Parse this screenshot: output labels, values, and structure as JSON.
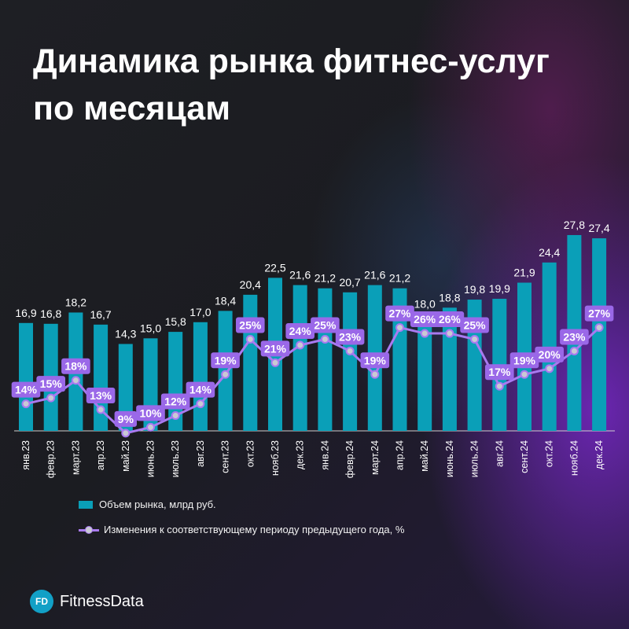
{
  "title": "Динамика рынка фитнес-услуг по месяцам",
  "legend": {
    "bar_label": "Объем рынка, млрд руб.",
    "line_label": "Изменения к соответствующему периоду предыдущего года, %"
  },
  "brand": {
    "logo_text": "FD",
    "name": "FitnessData"
  },
  "colors": {
    "bar": "#0a9fb8",
    "line": "#a97af0",
    "line_label_bg": "#9a68e8",
    "marker_fill": "#c9c9d4",
    "text": "#ffffff",
    "axis": "#cfcfcf"
  },
  "chart_data": {
    "type": "bar",
    "categories": [
      "янв.23",
      "февр.23",
      "март.23",
      "апр.23",
      "май.23",
      "июнь.23",
      "июль.23",
      "авг.23",
      "сент.23",
      "окт.23",
      "нояб.23",
      "дек.23",
      "янв.24",
      "февр.24",
      "март.24",
      "апр.24",
      "май.24",
      "июнь.24",
      "июль.24",
      "авг.24",
      "сент.24",
      "окт.24",
      "нояб.24",
      "дек.24"
    ],
    "series": [
      {
        "name": "Объем рынка, млрд руб.",
        "type": "bar",
        "values": [
          16.9,
          16.8,
          18.2,
          16.7,
          14.3,
          15.0,
          15.8,
          17.0,
          18.4,
          20.4,
          22.5,
          21.6,
          21.2,
          20.7,
          21.6,
          21.2,
          18.0,
          18.8,
          19.8,
          19.9,
          21.9,
          24.4,
          27.8,
          27.4
        ],
        "labels": [
          "16,9",
          "16,8",
          "18,2",
          "16,7",
          "14,3",
          "15,0",
          "15,8",
          "17,0",
          "18,4",
          "20,4",
          "22,5",
          "21,6",
          "21,2",
          "20,7",
          "21,6",
          "21,2",
          "18,0",
          "18,8",
          "19,8",
          "19,9",
          "21,9",
          "24,4",
          "27,8",
          "27,4"
        ]
      },
      {
        "name": "Изменения к соответствующему периоду предыдущего года, %",
        "type": "line",
        "values": [
          14,
          15,
          18,
          13,
          9,
          10,
          12,
          14,
          19,
          25,
          21,
          24,
          25,
          23,
          19,
          27,
          26,
          26,
          25,
          17,
          19,
          20,
          23,
          27
        ],
        "labels": [
          "14%",
          "15%",
          "18%",
          "13%",
          "9%",
          "10%",
          "12%",
          "14%",
          "19%",
          "25%",
          "21%",
          "24%",
          "25%",
          "23%",
          "19%",
          "27%",
          "26%",
          "26%",
          "25%",
          "17%",
          "19%",
          "20%",
          "23%",
          "27%"
        ]
      }
    ],
    "legend_position": "bottom-left",
    "grid": false
  }
}
